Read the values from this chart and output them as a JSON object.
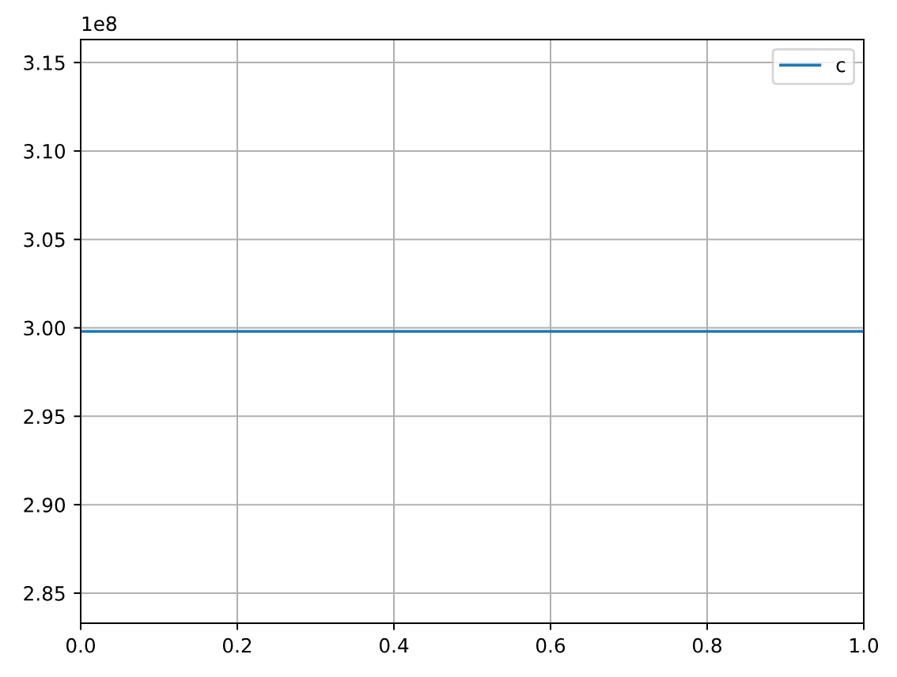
{
  "chart_data": {
    "type": "line",
    "x": [
      0,
      1
    ],
    "series": [
      {
        "name": "c",
        "color": "#1f77b4",
        "values": [
          2.998,
          2.998
        ]
      }
    ],
    "xlim": [
      0,
      1
    ],
    "xticks": [
      {
        "value": 0,
        "label": "0.0"
      },
      0.2,
      0.4,
      0.6,
      0.8,
      {
        "value": 1,
        "label": "1.0"
      }
    ],
    "ylim": [
      2.833,
      3.163
    ],
    "yticks": [
      2.85,
      {
        "value": 2.9,
        "label": "2.90"
      },
      2.95,
      {
        "value": 3.0,
        "label": "3.00"
      },
      3.05,
      {
        "value": 3.1,
        "label": "3.10"
      },
      3.15
    ],
    "annotations": [
      "1e8"
    ],
    "grid": true,
    "legend": "top right"
  }
}
